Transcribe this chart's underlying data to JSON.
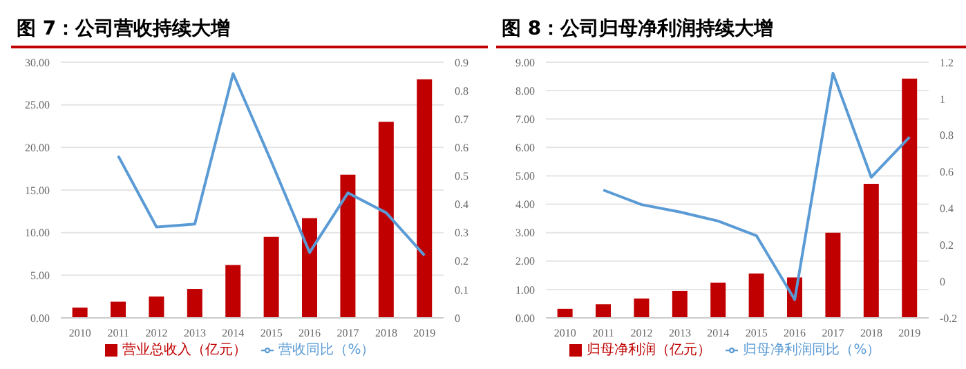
{
  "chart_data": [
    {
      "type": "bar",
      "title": "图 7：公司营收持续大增",
      "categories": [
        "2010",
        "2011",
        "2012",
        "2013",
        "2014",
        "2015",
        "2016",
        "2017",
        "2018",
        "2019"
      ],
      "series": [
        {
          "name": "营业总收入（亿元）",
          "color": "#c00000",
          "values": [
            1.2,
            1.9,
            2.5,
            3.4,
            6.2,
            9.5,
            11.7,
            16.8,
            23.0,
            28.0
          ]
        },
        {
          "name": "营收同比（%）",
          "type": "line",
          "axis": "y2",
          "color": "#5b9bd5",
          "values": [
            null,
            0.57,
            0.32,
            0.33,
            0.86,
            0.55,
            0.23,
            0.44,
            0.37,
            0.22
          ]
        }
      ],
      "ylim": [
        0,
        30
      ],
      "yticks": [
        {
          "value": 0,
          "label": "0.00"
        },
        {
          "value": 5,
          "label": "5.00"
        },
        {
          "value": 10,
          "label": "10.00"
        },
        {
          "value": 15,
          "label": "15.00"
        },
        {
          "value": 20,
          "label": "20.00"
        },
        {
          "value": 25,
          "label": "25.00"
        },
        {
          "value": 30,
          "label": "30.00"
        }
      ],
      "y2lim": [
        0,
        0.9
      ],
      "y2ticks": [
        0,
        0.1,
        0.2,
        0.3,
        0.4,
        0.5,
        0.6,
        0.7,
        0.8,
        0.9
      ],
      "grid": "y",
      "legend": "bottom",
      "marker": "none"
    },
    {
      "type": "bar",
      "title": "图 8：公司归母净利润持续大增",
      "categories": [
        "2010",
        "2011",
        "2012",
        "2013",
        "2014",
        "2015",
        "2016",
        "2017",
        "2018",
        "2019"
      ],
      "series": [
        {
          "name": "归母净利润（亿元）",
          "color": "#c00000",
          "values": [
            0.32,
            0.48,
            0.68,
            0.95,
            1.24,
            1.56,
            1.42,
            3.0,
            4.72,
            8.42
          ]
        },
        {
          "name": "归母净利润同比（%）",
          "type": "line",
          "axis": "y2",
          "color": "#5b9bd5",
          "values": [
            null,
            0.5,
            0.42,
            0.38,
            0.33,
            0.25,
            -0.1,
            1.14,
            0.57,
            0.79
          ]
        }
      ],
      "ylim": [
        0,
        9
      ],
      "yticks": [
        {
          "value": 0,
          "label": "0.00"
        },
        {
          "value": 1,
          "label": "1.00"
        },
        {
          "value": 2,
          "label": "2.00"
        },
        {
          "value": 3,
          "label": "3.00"
        },
        {
          "value": 4,
          "label": "4.00"
        },
        {
          "value": 5,
          "label": "5.00"
        },
        {
          "value": 6,
          "label": "6.00"
        },
        {
          "value": 7,
          "label": "7.00"
        },
        {
          "value": 8,
          "label": "8.00"
        },
        {
          "value": 9,
          "label": "9.00"
        }
      ],
      "y2lim": [
        -0.2,
        1.2
      ],
      "y2ticks": [
        -0.2,
        0,
        0.2,
        0.4,
        0.6,
        0.8,
        1,
        1.2
      ],
      "grid": "y",
      "legend": "bottom",
      "marker": "none"
    }
  ]
}
